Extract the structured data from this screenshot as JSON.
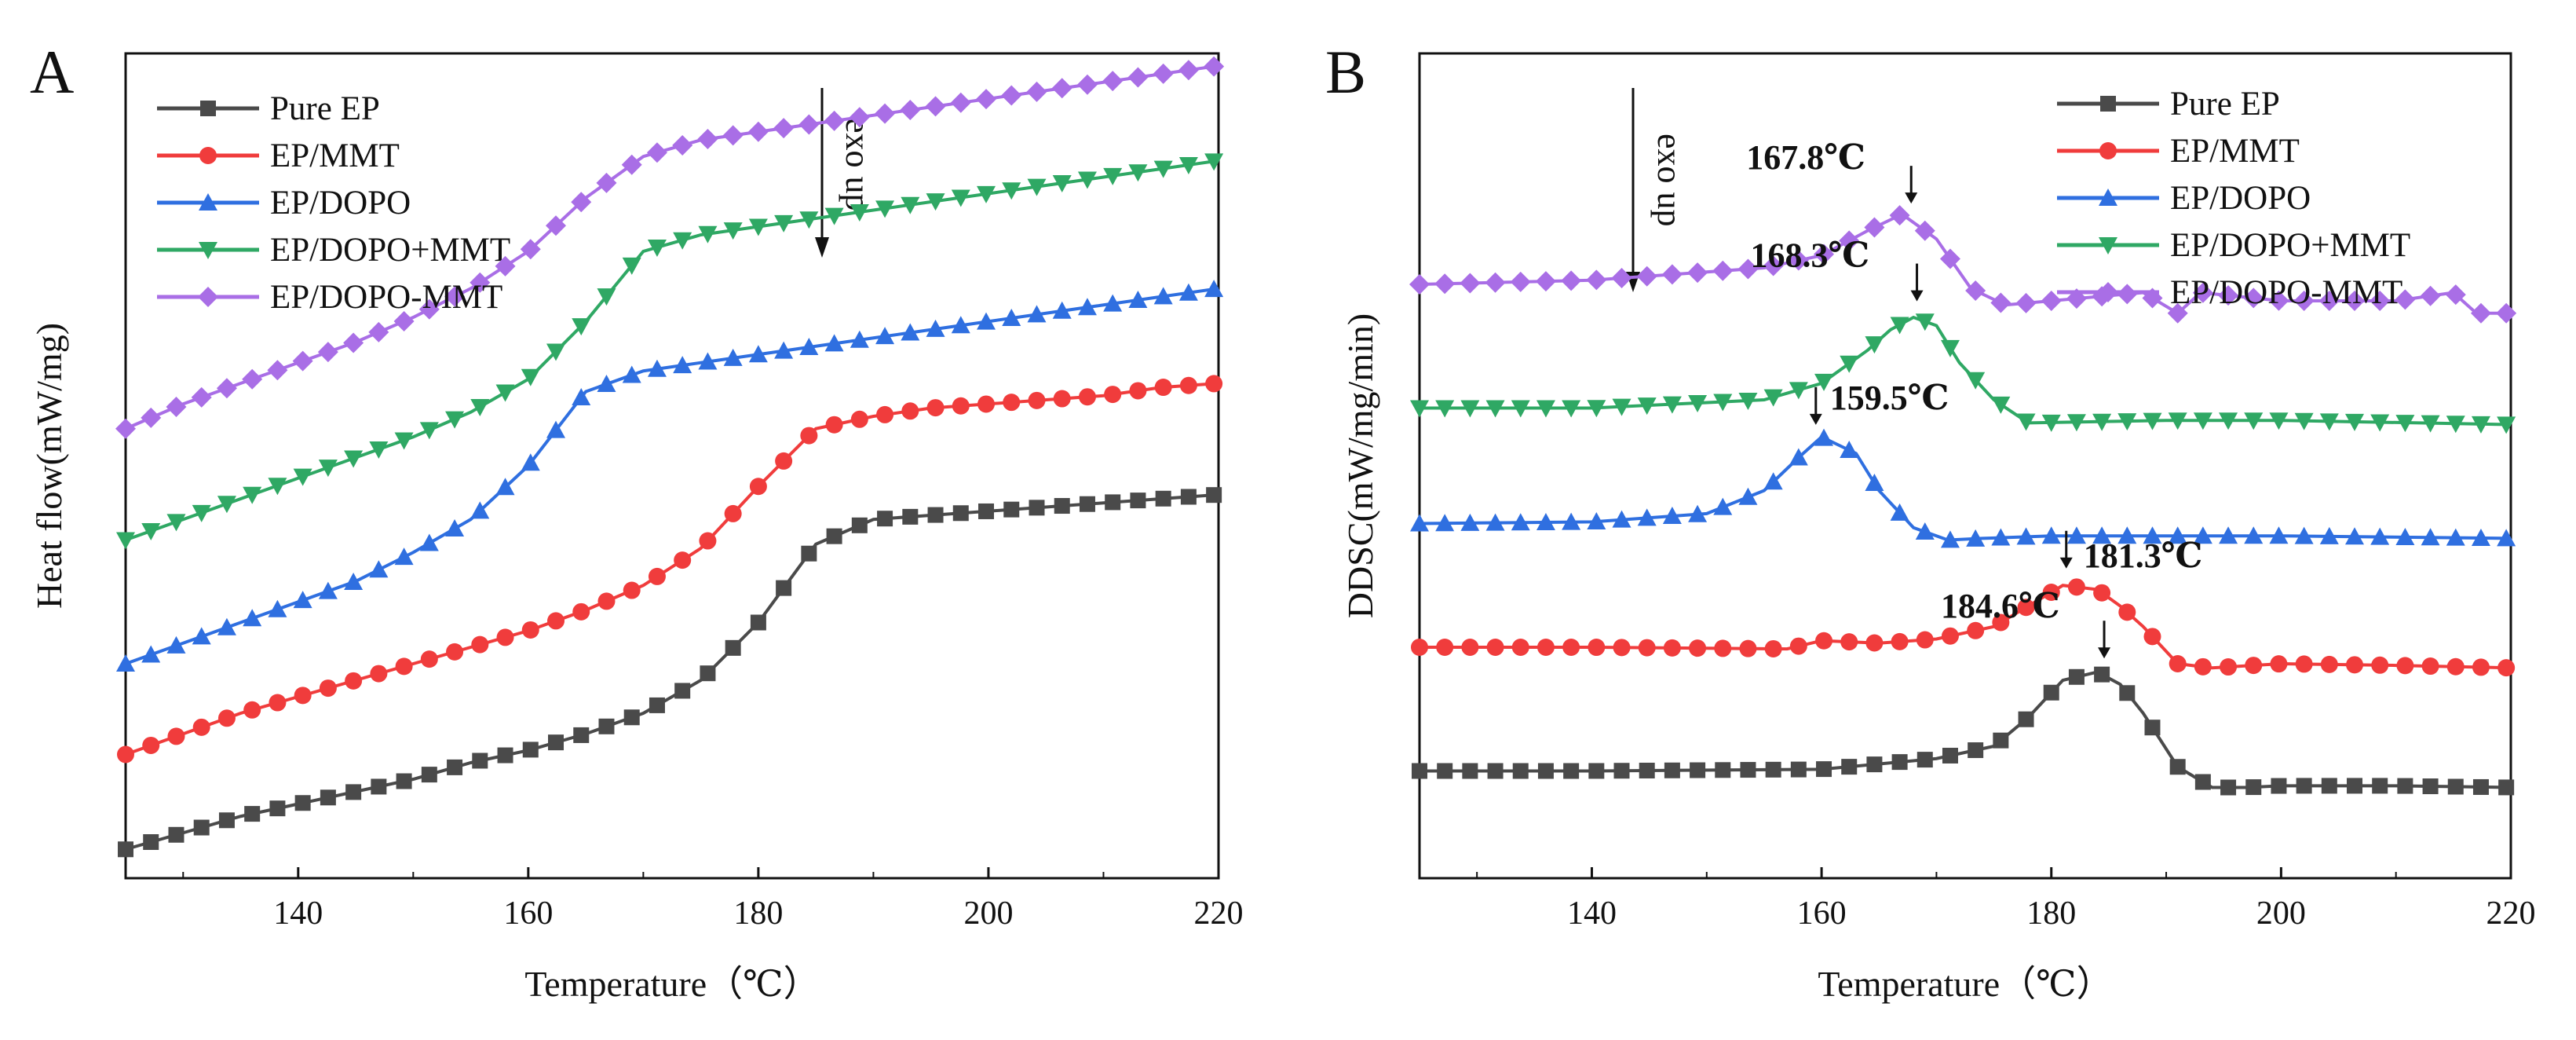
{
  "chart_data": [
    {
      "panel": "A",
      "type": "line",
      "xlabel": "Temperature（℃）",
      "ylabel": "Heat flow(mW/mg)",
      "xlim": [
        125,
        220
      ],
      "xticks": [
        140,
        160,
        180,
        200,
        220
      ],
      "ylim": [
        0,
        10
      ],
      "y_ticks_shown": false,
      "annotation": "exo up",
      "legend_position": "top-left",
      "series": [
        {
          "name": "Pure EP",
          "color": "#4a4a4a",
          "marker": "square",
          "x": [
            125,
            130,
            135,
            140,
            145,
            150,
            155,
            160,
            165,
            170,
            175,
            180,
            185,
            190,
            195,
            200,
            205,
            210,
            215,
            220
          ],
          "y": [
            0.35,
            0.55,
            0.75,
            0.9,
            1.05,
            1.2,
            1.4,
            1.55,
            1.75,
            2.0,
            2.4,
            3.1,
            4.05,
            4.35,
            4.4,
            4.45,
            4.5,
            4.55,
            4.6,
            4.65
          ]
        },
        {
          "name": "EP/MMT",
          "color": "#f03c3c",
          "marker": "circle",
          "x": [
            125,
            130,
            135,
            140,
            145,
            150,
            155,
            160,
            165,
            170,
            175,
            180,
            185,
            190,
            195,
            200,
            205,
            210,
            215,
            220
          ],
          "y": [
            1.5,
            1.75,
            2.0,
            2.2,
            2.4,
            2.6,
            2.8,
            3.0,
            3.25,
            3.55,
            4.0,
            4.75,
            5.45,
            5.6,
            5.7,
            5.75,
            5.8,
            5.85,
            5.95,
            6.0
          ]
        },
        {
          "name": "EP/DOPO",
          "color": "#2f6fe0",
          "marker": "triangle-up",
          "x": [
            125,
            130,
            135,
            140,
            145,
            150,
            155,
            160,
            165,
            170,
            175,
            180,
            185,
            190,
            195,
            200,
            205,
            210,
            215,
            220
          ],
          "y": [
            2.6,
            2.85,
            3.1,
            3.35,
            3.6,
            3.95,
            4.35,
            5.0,
            5.9,
            6.15,
            6.25,
            6.35,
            6.45,
            6.55,
            6.65,
            6.75,
            6.85,
            6.95,
            7.05,
            7.15
          ]
        },
        {
          "name": "EP/DOPO+MMT",
          "color": "#2fa864",
          "marker": "triangle-down",
          "x": [
            125,
            130,
            135,
            140,
            145,
            150,
            155,
            160,
            165,
            170,
            175,
            180,
            185,
            190,
            195,
            200,
            205,
            210,
            215,
            220
          ],
          "y": [
            4.1,
            4.35,
            4.6,
            4.85,
            5.1,
            5.35,
            5.65,
            6.05,
            6.75,
            7.6,
            7.8,
            7.9,
            8.0,
            8.1,
            8.2,
            8.3,
            8.4,
            8.5,
            8.6,
            8.7
          ]
        },
        {
          "name": "EP/DOPO-MMT",
          "color": "#a96ee6",
          "marker": "diamond",
          "x": [
            125,
            130,
            135,
            140,
            145,
            150,
            155,
            160,
            165,
            170,
            175,
            180,
            185,
            190,
            195,
            200,
            205,
            210,
            215,
            220
          ],
          "y": [
            5.45,
            5.75,
            6.0,
            6.25,
            6.5,
            6.8,
            7.15,
            7.6,
            8.25,
            8.75,
            8.95,
            9.05,
            9.15,
            9.25,
            9.35,
            9.45,
            9.55,
            9.65,
            9.75,
            9.85
          ]
        }
      ]
    },
    {
      "panel": "B",
      "type": "line",
      "xlabel": "Temperature（℃）",
      "ylabel": "DDSC(mW/mg/min)",
      "xlim": [
        125,
        220
      ],
      "xticks": [
        140,
        160,
        180,
        200,
        220
      ],
      "ylim": [
        0,
        10
      ],
      "y_ticks_shown": false,
      "annotation": "exo up",
      "legend_position": "top-right",
      "series": [
        {
          "name": "Pure EP",
          "color": "#4a4a4a",
          "marker": "square",
          "x": [
            125,
            140,
            160,
            170,
            175,
            178,
            181,
            184,
            186,
            188,
            191,
            194,
            197,
            200,
            210,
            220
          ],
          "y": [
            1.3,
            1.3,
            1.32,
            1.45,
            1.6,
            1.95,
            2.4,
            2.5,
            2.35,
            2.0,
            1.35,
            1.1,
            1.1,
            1.12,
            1.12,
            1.1
          ]
        },
        {
          "name": "EP/MMT",
          "color": "#f03c3c",
          "marker": "circle",
          "x": [
            125,
            140,
            157,
            160,
            165,
            170,
            175,
            178,
            181,
            184,
            186,
            188,
            191,
            194,
            200,
            210,
            220
          ],
          "y": [
            2.8,
            2.8,
            2.78,
            2.88,
            2.85,
            2.9,
            3.05,
            3.3,
            3.55,
            3.5,
            3.3,
            3.05,
            2.6,
            2.55,
            2.6,
            2.58,
            2.55
          ]
        },
        {
          "name": "EP/DOPO",
          "color": "#2f6fe0",
          "marker": "triangle-up",
          "x": [
            125,
            140,
            150,
            155,
            158,
            160,
            163,
            165,
            168,
            171,
            174,
            180,
            200,
            220
          ],
          "y": [
            4.3,
            4.32,
            4.42,
            4.7,
            5.1,
            5.35,
            5.15,
            4.7,
            4.25,
            4.1,
            4.12,
            4.15,
            4.15,
            4.12
          ]
        },
        {
          "name": "EP/DOPO+MMT",
          "color": "#2fa864",
          "marker": "triangle-down",
          "x": [
            125,
            140,
            155,
            160,
            164,
            166,
            168,
            170,
            172,
            175,
            178,
            190,
            200,
            220
          ],
          "y": [
            5.7,
            5.7,
            5.8,
            6.0,
            6.4,
            6.65,
            6.8,
            6.7,
            6.25,
            5.8,
            5.52,
            5.55,
            5.55,
            5.5
          ]
        },
        {
          "name": "EP/DOPO-MMT",
          "color": "#a96ee6",
          "marker": "diamond",
          "x": [
            125,
            140,
            155,
            160,
            164,
            167,
            170,
            173,
            176,
            180,
            188,
            191,
            193,
            200,
            210,
            215,
            217,
            220
          ],
          "y": [
            7.2,
            7.25,
            7.4,
            7.55,
            7.85,
            8.05,
            7.75,
            7.15,
            6.95,
            7.0,
            7.1,
            6.85,
            7.1,
            7.0,
            7.0,
            7.1,
            6.85,
            6.85
          ]
        }
      ],
      "peaks": [
        {
          "label": "167.8℃",
          "x": 167.8,
          "series": "EP/DOPO-MMT"
        },
        {
          "label": "168.3℃",
          "x": 168.3,
          "series": "EP/DOPO+MMT"
        },
        {
          "label": "159.5℃",
          "x": 159.5,
          "series": "EP/DOPO"
        },
        {
          "label": "181.3℃",
          "x": 181.3,
          "series": "EP/MMT"
        },
        {
          "label": "184.6℃",
          "x": 184.6,
          "series": "Pure EP"
        }
      ]
    }
  ]
}
